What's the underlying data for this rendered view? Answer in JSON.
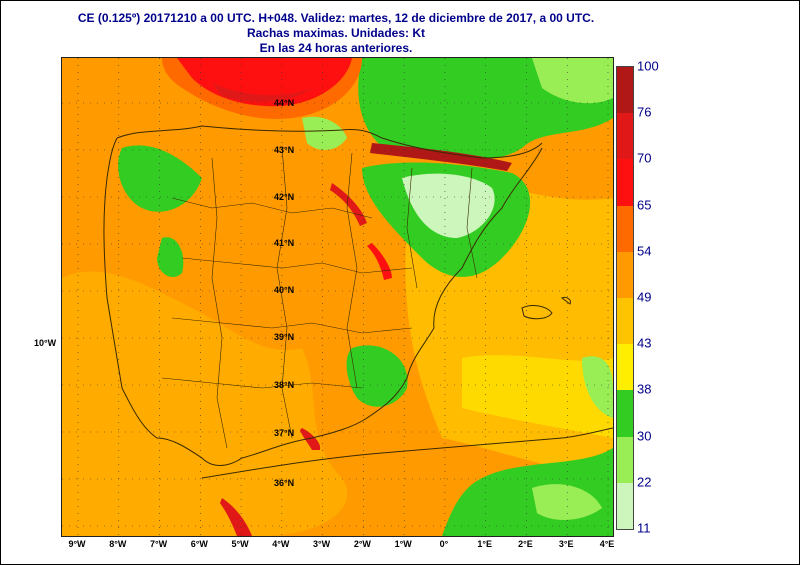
{
  "title": {
    "line1": "CE (0.125º) 20171210 a 00 UTC.  H+048. Validez: martes, 12 de diciembre de 2017,  a  00 UTC.",
    "line2": "Rachas maximas. Unidades: Kt",
    "line3": "En las 24 horas anteriores."
  },
  "map": {
    "lon_labels": [
      "9°W",
      "8°W",
      "7°W",
      "6°W",
      "5°W",
      "4°W",
      "3°W",
      "2°W",
      "1°W",
      "0°",
      "1°E",
      "2°E",
      "3°E",
      "4°E"
    ],
    "lat_labels": [
      "44°N",
      "43°N",
      "42°N",
      "41°N",
      "40°N",
      "39°N",
      "38°N",
      "37°N",
      "36°N"
    ],
    "side_label": "10°W"
  },
  "legend": {
    "values": [
      "100",
      "76",
      "70",
      "65",
      "54",
      "49",
      "43",
      "38",
      "30",
      "22",
      "11"
    ],
    "colors": [
      "#b01818",
      "#e01818",
      "#ff1010",
      "#ff6a00",
      "#ff9a00",
      "#ffc400",
      "#ffee00",
      "#33cc22",
      "#99ee55",
      "#ccf6bb",
      "#e8fff0"
    ]
  }
}
